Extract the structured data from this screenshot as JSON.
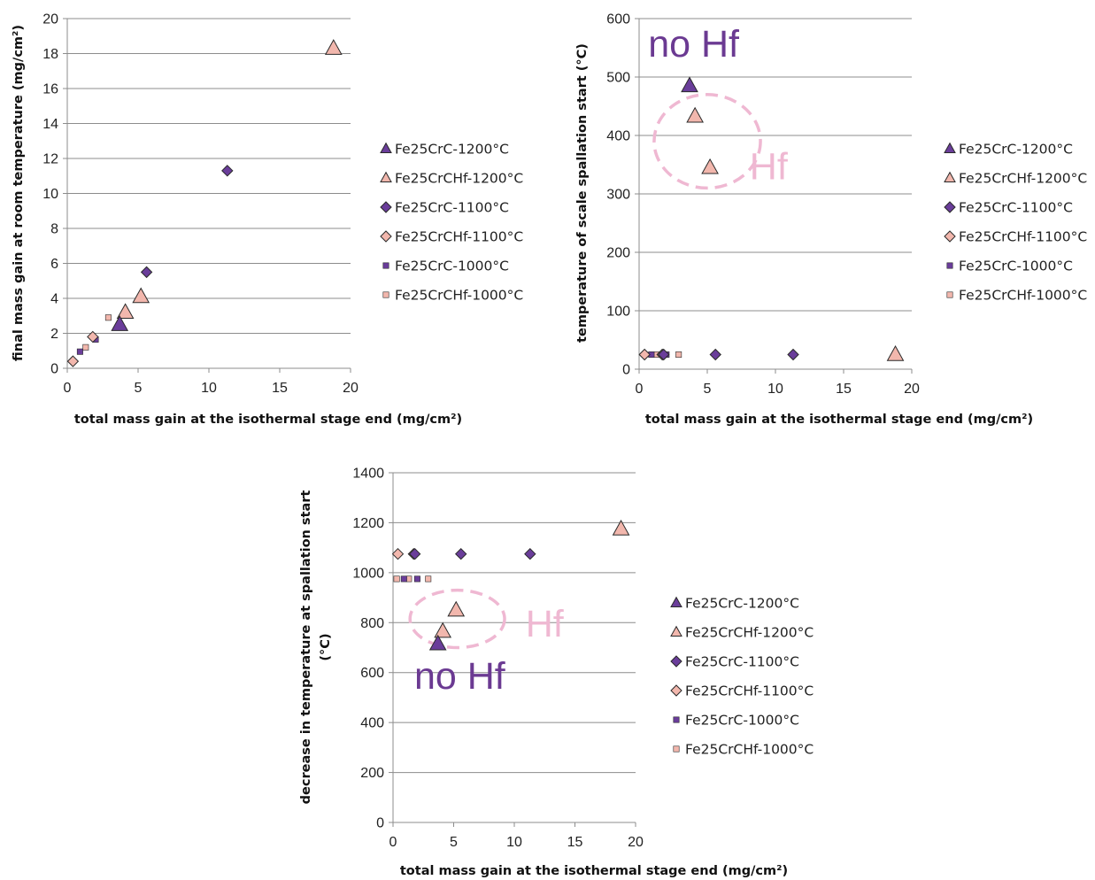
{
  "series_styles": [
    {
      "name": "Fe25CrC-1200°C",
      "marker": "triangle",
      "fill": "#6a3d9a",
      "size": "large"
    },
    {
      "name": "Fe25CrCHf-1200°C",
      "marker": "triangle",
      "fill": "#f2b7ad",
      "size": "large"
    },
    {
      "name": "Fe25CrC-1100°C",
      "marker": "diamond",
      "fill": "#6a3d9a",
      "size": "medium"
    },
    {
      "name": "Fe25CrCHf-1100°C",
      "marker": "diamond",
      "fill": "#f2b7ad",
      "size": "medium"
    },
    {
      "name": "Fe25CrC-1000°C",
      "marker": "square",
      "fill": "#6a3d9a",
      "size": "small"
    },
    {
      "name": "Fe25CrCHf-1000°C",
      "marker": "square",
      "fill": "#f2b7ad",
      "size": "small"
    }
  ],
  "chart_data": [
    {
      "type": "scatter",
      "xlabel": "total mass gain at the isothermal stage end (mg/cm²)",
      "ylabel": "final mass gain at room temperature (mg/cm²)",
      "xlim": [
        0,
        20
      ],
      "ylim": [
        0,
        20
      ],
      "x_ticks": [
        0,
        5,
        10,
        15,
        20
      ],
      "y_ticks": [
        0,
        2,
        4,
        6,
        8,
        10,
        12,
        14,
        16,
        18,
        20
      ],
      "grid": "horizontal",
      "legend_position": "right",
      "series": [
        {
          "name": "Fe25CrC-1200°C",
          "points": [
            [
              3.7,
              2.5
            ]
          ]
        },
        {
          "name": "Fe25CrCHf-1200°C",
          "points": [
            [
              18.8,
              18.3
            ],
            [
              5.2,
              4.1
            ],
            [
              4.1,
              3.2
            ]
          ]
        },
        {
          "name": "Fe25CrC-1100°C",
          "points": [
            [
              11.3,
              11.3
            ],
            [
              5.6,
              5.5
            ]
          ]
        },
        {
          "name": "Fe25CrCHf-1100°C",
          "points": [
            [
              1.8,
              1.8
            ],
            [
              0.4,
              0.4
            ]
          ]
        },
        {
          "name": "Fe25CrC-1000°C",
          "points": [
            [
              2.0,
              1.65
            ],
            [
              0.9,
              0.95
            ]
          ]
        },
        {
          "name": "Fe25CrCHf-1000°C",
          "points": [
            [
              2.9,
              2.9
            ],
            [
              1.3,
              1.2
            ]
          ]
        }
      ],
      "annotations": []
    },
    {
      "type": "scatter",
      "xlabel": "total mass gain at the isothermal stage end (mg/cm²)",
      "ylabel": "temperature of scale spallation start (°C)",
      "xlim": [
        0,
        20
      ],
      "ylim": [
        0,
        600
      ],
      "x_ticks": [
        0,
        5,
        10,
        15,
        20
      ],
      "y_ticks": [
        0,
        100,
        200,
        300,
        400,
        500,
        600
      ],
      "grid": "horizontal",
      "legend_position": "right",
      "series": [
        {
          "name": "Fe25CrC-1200°C",
          "points": [
            [
              3.7,
              485
            ]
          ]
        },
        {
          "name": "Fe25CrCHf-1200°C",
          "points": [
            [
              4.1,
              433
            ],
            [
              5.2,
              345
            ],
            [
              18.8,
              25
            ]
          ]
        },
        {
          "name": "Fe25CrC-1100°C",
          "points": [
            [
              5.6,
              25
            ],
            [
              11.3,
              25
            ],
            [
              1.8,
              25
            ]
          ]
        },
        {
          "name": "Fe25CrCHf-1100°C",
          "points": [
            [
              0.4,
              25
            ],
            [
              1.7,
              25
            ]
          ]
        },
        {
          "name": "Fe25CrC-1000°C",
          "points": [
            [
              0.9,
              25
            ],
            [
              2.0,
              25
            ]
          ]
        },
        {
          "name": "Fe25CrCHf-1000°C",
          "points": [
            [
              1.3,
              25
            ],
            [
              2.9,
              25
            ]
          ]
        }
      ],
      "annotations": [
        {
          "text": "no Hf",
          "x": 4.0,
          "y": 535,
          "style": "dark"
        },
        {
          "text": "Hf",
          "x": 9.5,
          "y": 325,
          "style": "light"
        }
      ],
      "ellipse": {
        "cx": 5.0,
        "cy": 390,
        "rx": 3.9,
        "ry": 80
      }
    },
    {
      "type": "scatter",
      "xlabel": "total mass gain at the isothermal stage end (mg/cm²)",
      "ylabel_lines": [
        "decrease in temperature  at spallation start",
        "(°C)"
      ],
      "xlim": [
        0,
        20
      ],
      "ylim": [
        0,
        1400
      ],
      "x_ticks": [
        0,
        5,
        10,
        15,
        20
      ],
      "y_ticks": [
        0,
        200,
        400,
        600,
        800,
        1000,
        1200,
        1400
      ],
      "grid": "horizontal",
      "legend_position": "right",
      "series": [
        {
          "name": "Fe25CrC-1200°C",
          "points": [
            [
              3.7,
              715
            ]
          ]
        },
        {
          "name": "Fe25CrCHf-1200°C",
          "points": [
            [
              18.8,
              1175
            ],
            [
              5.2,
              850
            ],
            [
              4.1,
              765
            ]
          ]
        },
        {
          "name": "Fe25CrC-1100°C",
          "points": [
            [
              5.6,
              1075
            ],
            [
              11.3,
              1075
            ],
            [
              1.8,
              1075
            ]
          ]
        },
        {
          "name": "Fe25CrCHf-1100°C",
          "points": [
            [
              0.4,
              1075
            ],
            [
              1.7,
              1075
            ]
          ]
        },
        {
          "name": "Fe25CrC-1000°C",
          "points": [
            [
              0.9,
              975
            ],
            [
              2.0,
              975
            ]
          ]
        },
        {
          "name": "Fe25CrCHf-1000°C",
          "points": [
            [
              0.3,
              975
            ],
            [
              1.3,
              975
            ],
            [
              2.9,
              975
            ]
          ]
        }
      ],
      "annotations": [
        {
          "text": "no Hf",
          "x": 5.5,
          "y": 535,
          "style": "dark"
        },
        {
          "text": "Hf",
          "x": 12.5,
          "y": 745,
          "style": "light"
        }
      ],
      "ellipse": {
        "cx": 5.3,
        "cy": 815,
        "rx": 3.9,
        "ry": 115
      }
    }
  ]
}
